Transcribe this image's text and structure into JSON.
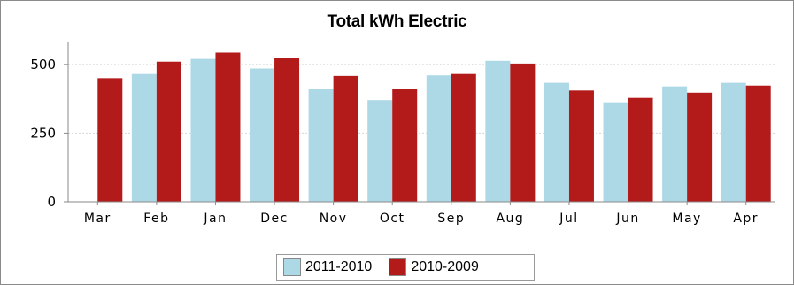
{
  "chart_data": {
    "type": "bar",
    "title": "Total kWh Electric",
    "categories": [
      "Mar",
      "Feb",
      "Jan",
      "Dec",
      "Nov",
      "Oct",
      "Sep",
      "Aug",
      "Jul",
      "Jun",
      "May",
      "Apr"
    ],
    "series": [
      {
        "name": "2011-2010",
        "color": "#ADD8E6",
        "values": [
          null,
          465,
          520,
          485,
          410,
          370,
          460,
          513,
          433,
          362,
          420,
          433
        ]
      },
      {
        "name": "2010-2009",
        "color": "#B31B1B",
        "values": [
          450,
          510,
          543,
          522,
          458,
          410,
          465,
          503,
          405,
          378,
          397,
          423
        ]
      }
    ],
    "yticks": [
      "0",
      "250",
      "500"
    ],
    "ylim": [
      0,
      580
    ],
    "grid": true,
    "legend_position": "bottom"
  }
}
